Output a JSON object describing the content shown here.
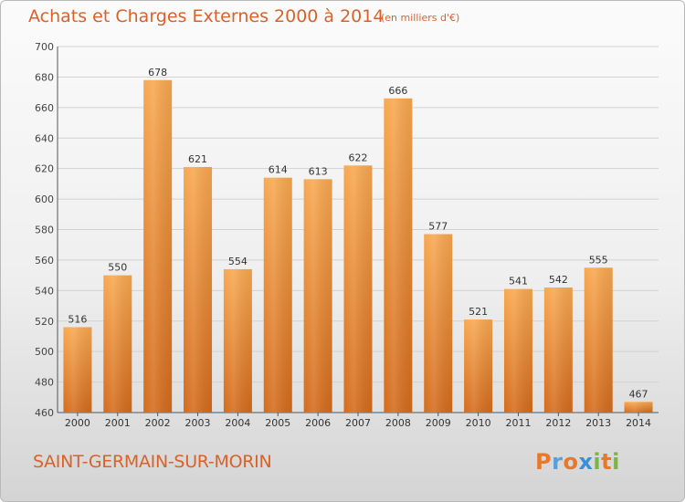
{
  "header": {
    "title": "Achats et Charges Externes 2000 à 2014",
    "unit": "(en milliers d'€)"
  },
  "footer": {
    "commune": "SAINT-GERMAIN-SUR-MORIN",
    "logo": "Proxiti"
  },
  "colors": {
    "accent": "#d8622a",
    "bar_light": "#f7a44f",
    "bar_dark": "#d86f1f",
    "logo_letters": [
      "#e8792a",
      "#5aa0d8",
      "#e8792a",
      "#3a8fd8",
      "#7bb44a",
      "#e8792a",
      "#7bb44a"
    ]
  },
  "chart_data": {
    "type": "bar",
    "categories": [
      "2000",
      "2001",
      "2002",
      "2003",
      "2004",
      "2005",
      "2006",
      "2007",
      "2008",
      "2009",
      "2010",
      "2011",
      "2012",
      "2013",
      "2014"
    ],
    "values": [
      516,
      550,
      678,
      621,
      554,
      614,
      613,
      622,
      666,
      577,
      521,
      541,
      542,
      555,
      467
    ],
    "ylim": [
      460,
      700
    ],
    "yticks": [
      460,
      480,
      500,
      520,
      540,
      560,
      580,
      600,
      620,
      640,
      660,
      680,
      700
    ],
    "grid": true,
    "title": "Achats et Charges Externes 2000 à 2014",
    "xlabel": "",
    "ylabel": ""
  }
}
